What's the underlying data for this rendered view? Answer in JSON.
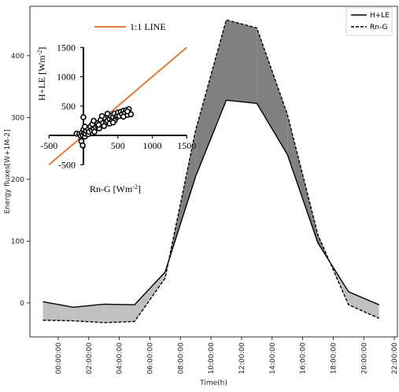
{
  "chart_data": [
    {
      "type": "area",
      "title": "",
      "xlabel": "Time(h)",
      "ylabel": "Energy fluxes[W+1M-2]",
      "x": [
        "23:00:00",
        "01:00:00",
        "03:00:00",
        "05:00:00",
        "07:00:00",
        "09:00:00",
        "11:00:00",
        "13:00:00",
        "15:00:00",
        "17:00:00",
        "19:00:00",
        "21:00:00"
      ],
      "xticks": [
        "00:00:00",
        "02:00:00",
        "04:00:00",
        "06:00:00",
        "08:00:00",
        "10:00:00",
        "12:00:00",
        "14:00:00",
        "16:00:00",
        "18:00:00",
        "20:00:00",
        "22:00:00"
      ],
      "yticks": [
        0,
        100,
        200,
        300,
        400
      ],
      "ylim": [
        -55,
        480
      ],
      "series": [
        {
          "name": "H+LE",
          "line_style": "solid",
          "values": [
            2,
            -7,
            -2,
            -3,
            50,
            205,
            328,
            323,
            240,
            97,
            18,
            -3
          ]
        },
        {
          "name": "Rn-G",
          "line_style": "dashed",
          "values": [
            -28,
            -29,
            -32,
            -30,
            40,
            280,
            458,
            445,
            305,
            110,
            -3,
            -25
          ]
        }
      ],
      "fill_colors": {
        "rn_g_above": "#808080",
        "h_le_above": "#c0c0c0"
      },
      "legend": "top-right",
      "grid": false
    },
    {
      "type": "scatter",
      "title": "",
      "xlabel": "Rn-G [Wm-2]",
      "ylabel": "H+LE [Wm-2]",
      "xticks": [
        -500,
        0,
        500,
        1000,
        1500
      ],
      "yticks": [
        -500,
        500,
        1000,
        1500
      ],
      "xlim": [
        -500,
        1500
      ],
      "ylim": [
        -500,
        1500
      ],
      "line_label": "1:1 LINE",
      "line_color": "#e07b39",
      "points": [
        [
          -100,
          30
        ],
        [
          -60,
          20
        ],
        [
          -40,
          -10
        ],
        [
          -20,
          50
        ],
        [
          -10,
          0
        ],
        [
          0,
          100
        ],
        [
          10,
          40
        ],
        [
          20,
          -20
        ],
        [
          30,
          30
        ],
        [
          40,
          80
        ],
        [
          60,
          120
        ],
        [
          70,
          20
        ],
        [
          80,
          60
        ],
        [
          100,
          150
        ],
        [
          120,
          90
        ],
        [
          130,
          190
        ],
        [
          150,
          110
        ],
        [
          160,
          60
        ],
        [
          180,
          140
        ],
        [
          200,
          210
        ],
        [
          210,
          150
        ],
        [
          230,
          120
        ],
        [
          250,
          260
        ],
        [
          260,
          180
        ],
        [
          280,
          210
        ],
        [
          300,
          160
        ],
        [
          310,
          300
        ],
        [
          330,
          230
        ],
        [
          350,
          250
        ],
        [
          360,
          320
        ],
        [
          380,
          280
        ],
        [
          400,
          330
        ],
        [
          410,
          240
        ],
        [
          430,
          310
        ],
        [
          450,
          370
        ],
        [
          470,
          290
        ],
        [
          490,
          340
        ],
        [
          500,
          390
        ],
        [
          520,
          330
        ],
        [
          540,
          400
        ],
        [
          560,
          360
        ],
        [
          580,
          420
        ],
        [
          600,
          380
        ],
        [
          620,
          430
        ],
        [
          640,
          350
        ],
        [
          660,
          450
        ],
        [
          -30,
          -100
        ],
        [
          -10,
          -170
        ],
        [
          20,
          150
        ],
        [
          0,
          310
        ],
        [
          150,
          250
        ],
        [
          220,
          180
        ],
        [
          380,
          200
        ],
        [
          270,
          330
        ],
        [
          450,
          250
        ],
        [
          580,
          320
        ],
        [
          640,
          410
        ],
        [
          690,
          360
        ],
        [
          350,
          370
        ],
        [
          430,
          220
        ]
      ]
    }
  ]
}
